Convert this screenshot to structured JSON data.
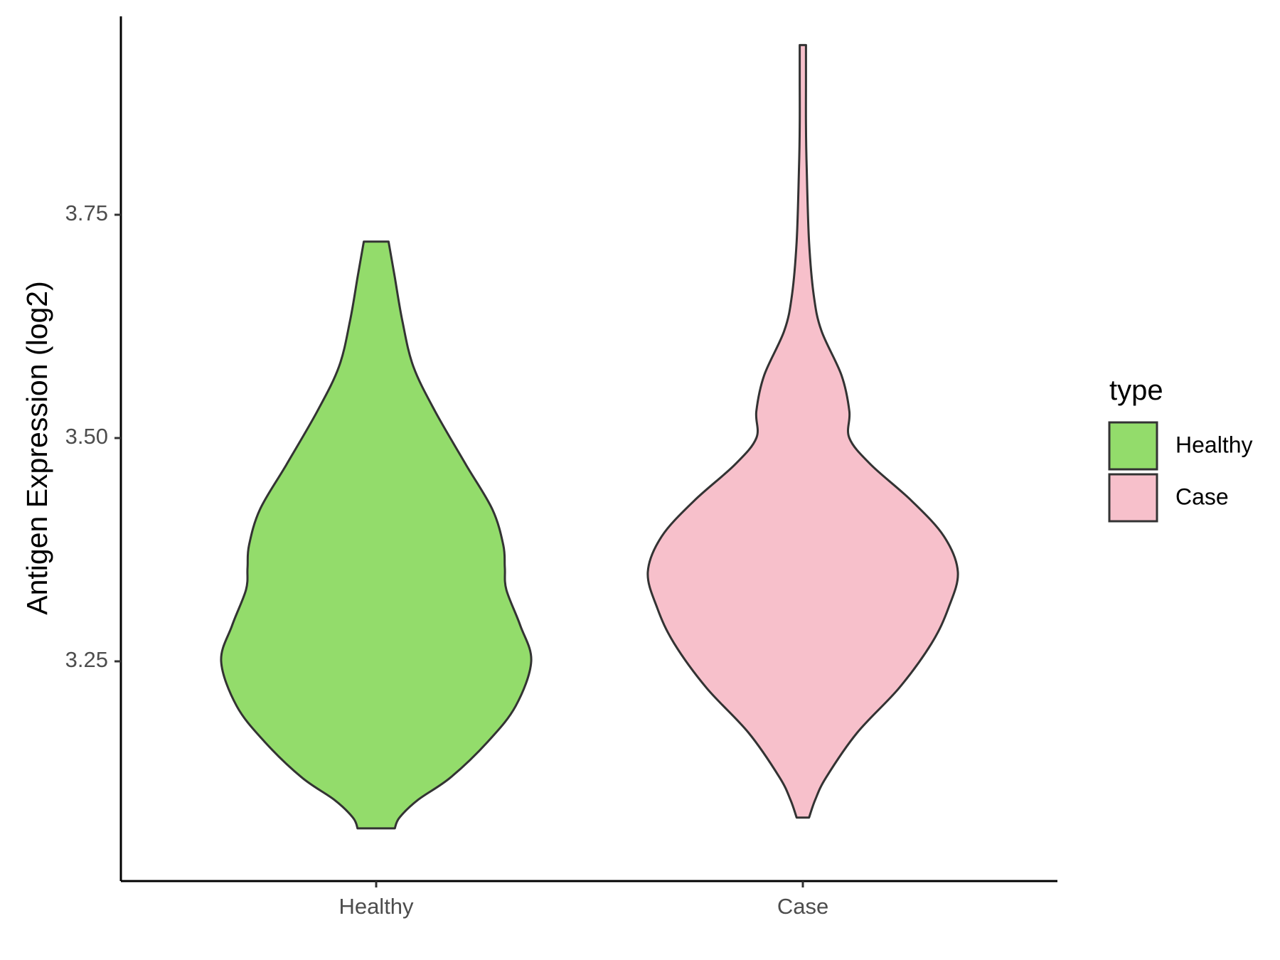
{
  "chart_data": {
    "type": "violin",
    "categories": [
      "Healthy",
      "Case"
    ],
    "ylabel": "Antigen Expression (log2)",
    "xlabel": "",
    "yticks": [
      3.25,
      3.5,
      3.75
    ],
    "ytick_labels": [
      "3.25",
      "3.50",
      "3.75"
    ],
    "ylim": [
      3.02,
      3.99
    ],
    "grid": false,
    "legend": {
      "title": "type",
      "position": "right",
      "entries": [
        {
          "label": "Healthy",
          "color": "#93dc6b"
        },
        {
          "label": "Case",
          "color": "#f7c0cb"
        }
      ]
    },
    "series": [
      {
        "name": "Healthy",
        "color": "#93dc6b",
        "min": 3.063,
        "max": 3.72,
        "density_profile": [
          [
            3.063,
            0.12
          ],
          [
            3.075,
            0.15
          ],
          [
            3.095,
            0.27
          ],
          [
            3.12,
            0.48
          ],
          [
            3.16,
            0.72
          ],
          [
            3.2,
            0.9
          ],
          [
            3.25,
            1.0
          ],
          [
            3.29,
            0.93
          ],
          [
            3.33,
            0.84
          ],
          [
            3.355,
            0.83
          ],
          [
            3.38,
            0.82
          ],
          [
            3.42,
            0.75
          ],
          [
            3.47,
            0.58
          ],
          [
            3.53,
            0.38
          ],
          [
            3.58,
            0.24
          ],
          [
            3.63,
            0.17
          ],
          [
            3.68,
            0.12
          ],
          [
            3.72,
            0.08
          ]
        ]
      },
      {
        "name": "Case",
        "color": "#f7c0cb",
        "min": 3.075,
        "max": 3.94,
        "density_profile": [
          [
            3.075,
            0.04
          ],
          [
            3.095,
            0.08
          ],
          [
            3.12,
            0.15
          ],
          [
            3.17,
            0.35
          ],
          [
            3.22,
            0.62
          ],
          [
            3.27,
            0.83
          ],
          [
            3.31,
            0.94
          ],
          [
            3.35,
            1.0
          ],
          [
            3.39,
            0.91
          ],
          [
            3.43,
            0.7
          ],
          [
            3.47,
            0.44
          ],
          [
            3.5,
            0.3
          ],
          [
            3.53,
            0.3
          ],
          [
            3.57,
            0.25
          ],
          [
            3.62,
            0.12
          ],
          [
            3.66,
            0.07
          ],
          [
            3.72,
            0.04
          ],
          [
            3.8,
            0.025
          ],
          [
            3.85,
            0.02
          ],
          [
            3.9,
            0.02
          ],
          [
            3.94,
            0.02
          ]
        ]
      }
    ]
  }
}
